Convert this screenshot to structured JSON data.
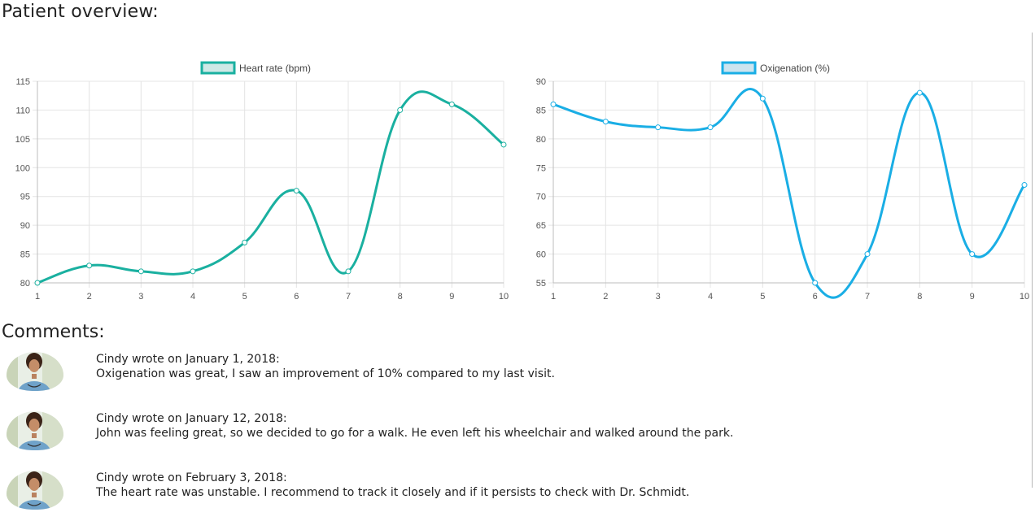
{
  "page": {
    "title": "Patient overview:",
    "comments_title": "Comments:"
  },
  "chart_data": [
    {
      "type": "line",
      "x": [
        1,
        2,
        3,
        4,
        5,
        6,
        7,
        8,
        9,
        10
      ],
      "series": [
        {
          "name": "Heart rate (bpm)",
          "values": [
            80,
            83,
            82,
            82,
            87,
            96,
            82,
            110,
            111,
            104
          ]
        }
      ],
      "ylim": [
        80,
        115
      ],
      "yticks": [
        80,
        85,
        90,
        95,
        100,
        105,
        110,
        115
      ],
      "grid": true,
      "legend": "top",
      "color": "#1ab0a0",
      "legend_fill": "#cfe9e6"
    },
    {
      "type": "line",
      "x": [
        1,
        2,
        3,
        4,
        5,
        6,
        7,
        8,
        9,
        10
      ],
      "series": [
        {
          "name": "Oxigenation (%)",
          "values": [
            86,
            83,
            82,
            82,
            87,
            55,
            60,
            88,
            60,
            72
          ]
        }
      ],
      "ylim": [
        55,
        90
      ],
      "yticks": [
        55,
        60,
        65,
        70,
        75,
        80,
        85,
        90
      ],
      "grid": true,
      "legend": "top",
      "color": "#1aaee5",
      "legend_fill": "#cce4ef"
    }
  ],
  "comments": [
    {
      "header": "Cindy wrote on January 1, 2018:",
      "body": "Oxigenation was great, I saw an improvement of 10% compared to my last visit."
    },
    {
      "header": "Cindy wrote on January 12, 2018:",
      "body": "John was feeling great, so we decided to go for a walk. He even left his wheelchair and walked around the park."
    },
    {
      "header": "Cindy wrote on February 3, 2018:",
      "body": "The heart rate was unstable. I recommend to track it closely and if it persists to check with Dr. Schmidt."
    }
  ]
}
